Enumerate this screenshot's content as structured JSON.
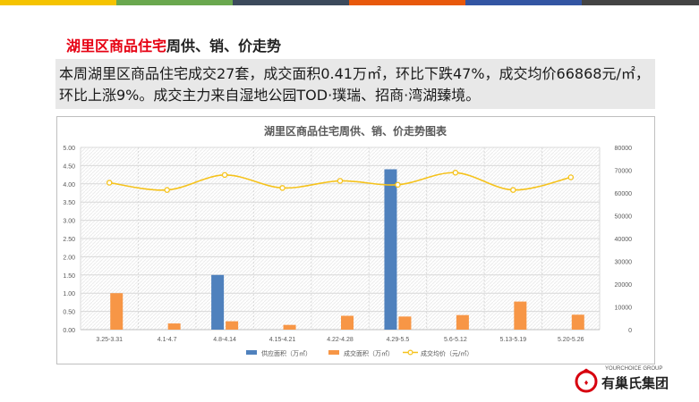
{
  "top_bar_colors": [
    "#f5c300",
    "#6aa84f",
    "#3c4a5c",
    "#e8590c",
    "#3355a3",
    "#444444"
  ],
  "heading": {
    "highlight": "湖里区商品住宅",
    "rest": "周供、销、价走势"
  },
  "summary": "本周湖里区商品住宅成交27套，成交面积0.41万㎡，环比下跌47%，成交均价66868元/㎡，环比上涨9%。成交主力来自湿地公园TOD·璞瑞、招商·湾湖臻境。",
  "logo": {
    "subtitle": "YOURCHOICE GROUP",
    "name": "有巢氏集团",
    "icon": "company-logo-icon"
  },
  "chart_data": {
    "type": "bar",
    "title": "湖里区商品住宅周供、销、价走势图表",
    "categories": [
      "3.25-3.31",
      "4.1-4.7",
      "4.8-4.14",
      "4.15-4.21",
      "4.22-4.28",
      "4.29-5.5",
      "5.6-5.12",
      "5.13-5.19",
      "5.20-5.26"
    ],
    "ylim": [
      0,
      5
    ],
    "y_ticks": [
      "0.00",
      "0.50",
      "1.00",
      "1.50",
      "2.00",
      "2.50",
      "3.00",
      "3.50",
      "4.00",
      "4.50",
      "5.00"
    ],
    "y2lim": [
      0,
      80000
    ],
    "y2_ticks": [
      "0",
      "10000",
      "20000",
      "30000",
      "40000",
      "50000",
      "60000",
      "70000",
      "80000"
    ],
    "series": [
      {
        "name": "供应面积（万㎡）",
        "type": "bar",
        "axis": "left",
        "color": "#4f81bd",
        "values": [
          0,
          0,
          1.5,
          0,
          0,
          4.4,
          0,
          0,
          0
        ]
      },
      {
        "name": "成交面积（万㎡）",
        "type": "bar",
        "axis": "left",
        "color": "#f79646",
        "values": [
          1.0,
          0.17,
          0.23,
          0.13,
          0.38,
          0.36,
          0.4,
          0.77,
          0.41
        ]
      },
      {
        "name": "成交均价（元/㎡）",
        "type": "line",
        "axis": "right",
        "color": "#f5c21b",
        "values": [
          64500,
          61300,
          67900,
          62200,
          65300,
          63600,
          68900,
          61300,
          66868
        ]
      }
    ],
    "grid": true,
    "legend_position": "bottom"
  }
}
